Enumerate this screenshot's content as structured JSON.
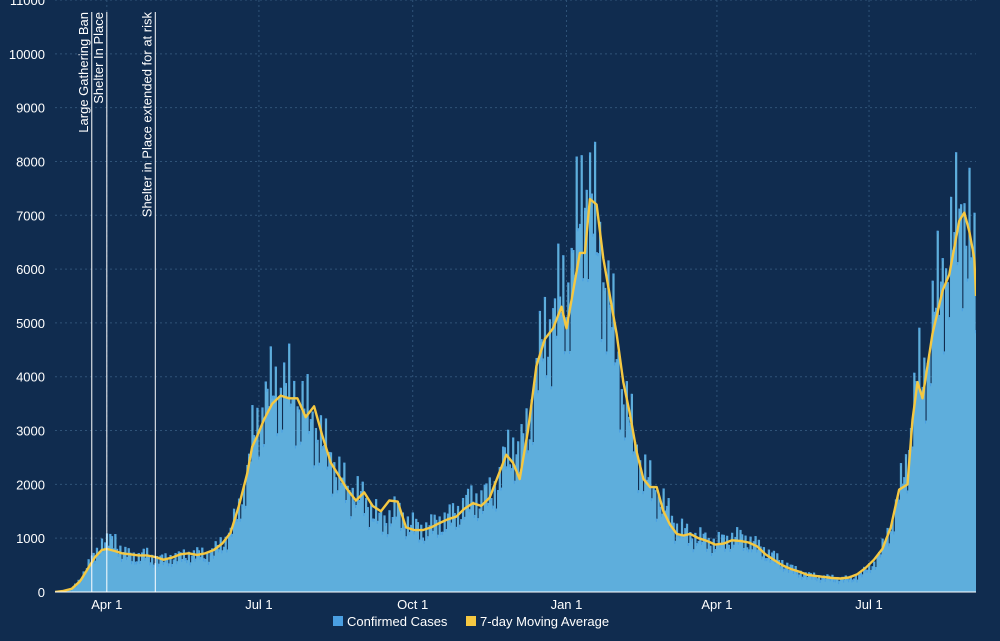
{
  "chart_data": {
    "type": "bar",
    "title": "",
    "xlabel": "",
    "ylabel": "",
    "ylim": [
      0,
      11000
    ],
    "y_ticks": [
      0,
      1000,
      2000,
      3000,
      4000,
      5000,
      6000,
      7000,
      8000,
      9000,
      10000,
      11000
    ],
    "x_ticks": [
      {
        "label": "Apr 1",
        "day": 31
      },
      {
        "label": "Jul 1",
        "day": 122
      },
      {
        "label": "Oct 1",
        "day": 214
      },
      {
        "label": "Jan 1",
        "day": 306
      },
      {
        "label": "Apr 1",
        "day": 396
      },
      {
        "label": "Jul 1",
        "day": 487
      }
    ],
    "x_range_days": [
      0,
      551
    ],
    "grid": true,
    "legend_position": "bottom",
    "series": [
      {
        "name": "Confirmed Cases",
        "color": "#4a9fe2",
        "kind": "bar",
        "points": [
          [
            0,
            0
          ],
          [
            5,
            20
          ],
          [
            10,
            60
          ],
          [
            15,
            250
          ],
          [
            20,
            500
          ],
          [
            24,
            700
          ],
          [
            27,
            900
          ],
          [
            31,
            900
          ],
          [
            36,
            1000
          ],
          [
            40,
            700
          ],
          [
            45,
            700
          ],
          [
            50,
            650
          ],
          [
            55,
            700
          ],
          [
            60,
            600
          ],
          [
            65,
            600
          ],
          [
            70,
            650
          ],
          [
            75,
            650
          ],
          [
            80,
            700
          ],
          [
            85,
            700
          ],
          [
            90,
            700
          ],
          [
            95,
            750
          ],
          [
            100,
            900
          ],
          [
            105,
            1100
          ],
          [
            110,
            1500
          ],
          [
            115,
            2200
          ],
          [
            118,
            2800
          ],
          [
            121,
            3000
          ],
          [
            125,
            3500
          ],
          [
            130,
            3700
          ],
          [
            135,
            3800
          ],
          [
            140,
            3700
          ],
          [
            145,
            3500
          ],
          [
            150,
            3300
          ],
          [
            155,
            3100
          ],
          [
            160,
            2700
          ],
          [
            165,
            2500
          ],
          [
            170,
            2100
          ],
          [
            175,
            1900
          ],
          [
            180,
            1800
          ],
          [
            185,
            1700
          ],
          [
            190,
            1500
          ],
          [
            195,
            1300
          ],
          [
            200,
            1400
          ],
          [
            205,
            1500
          ],
          [
            210,
            1300
          ],
          [
            215,
            1200
          ],
          [
            220,
            1150
          ],
          [
            225,
            1200
          ],
          [
            230,
            1300
          ],
          [
            235,
            1350
          ],
          [
            240,
            1450
          ],
          [
            245,
            1600
          ],
          [
            250,
            1700
          ],
          [
            255,
            1700
          ],
          [
            260,
            1800
          ],
          [
            265,
            2000
          ],
          [
            270,
            2500
          ],
          [
            274,
            2700
          ],
          [
            278,
            2500
          ],
          [
            283,
            3000
          ],
          [
            288,
            4000
          ],
          [
            293,
            4700
          ],
          [
            298,
            5000
          ],
          [
            303,
            5400
          ],
          [
            306,
            5500
          ],
          [
            310,
            6000
          ],
          [
            314,
            7000
          ],
          [
            317,
            7500
          ],
          [
            320,
            7300
          ],
          [
            324,
            6500
          ],
          [
            328,
            5900
          ],
          [
            332,
            5200
          ],
          [
            336,
            4300
          ],
          [
            340,
            3600
          ],
          [
            344,
            3100
          ],
          [
            348,
            2600
          ],
          [
            352,
            2200
          ],
          [
            356,
            2000
          ],
          [
            360,
            1800
          ],
          [
            364,
            1600
          ],
          [
            368,
            1400
          ],
          [
            372,
            1200
          ],
          [
            376,
            1100
          ],
          [
            380,
            1050
          ],
          [
            385,
            1000
          ],
          [
            390,
            950
          ],
          [
            395,
            900
          ],
          [
            400,
            950
          ],
          [
            405,
            1000
          ],
          [
            410,
            1000
          ],
          [
            415,
            950
          ],
          [
            420,
            850
          ],
          [
            425,
            750
          ],
          [
            430,
            650
          ],
          [
            435,
            550
          ],
          [
            440,
            450
          ],
          [
            445,
            380
          ],
          [
            450,
            320
          ],
          [
            455,
            300
          ],
          [
            460,
            280
          ],
          [
            465,
            270
          ],
          [
            470,
            260
          ],
          [
            475,
            250
          ],
          [
            480,
            300
          ],
          [
            485,
            400
          ],
          [
            490,
            550
          ],
          [
            495,
            800
          ],
          [
            500,
            1200
          ],
          [
            505,
            1800
          ],
          [
            510,
            2400
          ],
          [
            513,
            3400
          ],
          [
            516,
            4000
          ],
          [
            519,
            3800
          ],
          [
            522,
            4300
          ],
          [
            525,
            5000
          ],
          [
            528,
            5400
          ],
          [
            531,
            5800
          ],
          [
            535,
            6100
          ],
          [
            538,
            6500
          ],
          [
            541,
            6900
          ],
          [
            544,
            7000
          ],
          [
            547,
            6600
          ],
          [
            550,
            5800
          ],
          [
            551,
            5500
          ]
        ]
      },
      {
        "name": "7-day Moving Average",
        "color": "#f5c842",
        "kind": "line",
        "points": [
          [
            0,
            0
          ],
          [
            5,
            20
          ],
          [
            10,
            60
          ],
          [
            15,
            200
          ],
          [
            20,
            450
          ],
          [
            24,
            650
          ],
          [
            28,
            780
          ],
          [
            31,
            800
          ],
          [
            36,
            760
          ],
          [
            40,
            720
          ],
          [
            45,
            700
          ],
          [
            50,
            680
          ],
          [
            55,
            680
          ],
          [
            60,
            650
          ],
          [
            65,
            600
          ],
          [
            70,
            640
          ],
          [
            75,
            700
          ],
          [
            80,
            720
          ],
          [
            85,
            690
          ],
          [
            90,
            720
          ],
          [
            95,
            780
          ],
          [
            100,
            900
          ],
          [
            105,
            1100
          ],
          [
            110,
            1600
          ],
          [
            115,
            2200
          ],
          [
            118,
            2700
          ],
          [
            121,
            2900
          ],
          [
            125,
            3200
          ],
          [
            130,
            3500
          ],
          [
            135,
            3650
          ],
          [
            140,
            3600
          ],
          [
            145,
            3600
          ],
          [
            150,
            3250
          ],
          [
            155,
            3450
          ],
          [
            160,
            2900
          ],
          [
            165,
            2400
          ],
          [
            170,
            2150
          ],
          [
            175,
            1900
          ],
          [
            180,
            1700
          ],
          [
            185,
            1850
          ],
          [
            190,
            1600
          ],
          [
            195,
            1500
          ],
          [
            200,
            1700
          ],
          [
            205,
            1680
          ],
          [
            210,
            1200
          ],
          [
            215,
            1150
          ],
          [
            220,
            1150
          ],
          [
            225,
            1200
          ],
          [
            230,
            1280
          ],
          [
            235,
            1350
          ],
          [
            240,
            1400
          ],
          [
            245,
            1550
          ],
          [
            250,
            1650
          ],
          [
            255,
            1600
          ],
          [
            260,
            1750
          ],
          [
            265,
            2150
          ],
          [
            270,
            2550
          ],
          [
            274,
            2400
          ],
          [
            278,
            2100
          ],
          [
            283,
            3000
          ],
          [
            288,
            4200
          ],
          [
            293,
            4700
          ],
          [
            298,
            4900
          ],
          [
            303,
            5300
          ],
          [
            306,
            4900
          ],
          [
            310,
            5600
          ],
          [
            314,
            6300
          ],
          [
            317,
            6300
          ],
          [
            320,
            7300
          ],
          [
            324,
            7200
          ],
          [
            328,
            6200
          ],
          [
            332,
            5500
          ],
          [
            336,
            4800
          ],
          [
            340,
            3900
          ],
          [
            344,
            3300
          ],
          [
            348,
            2600
          ],
          [
            352,
            2100
          ],
          [
            356,
            1950
          ],
          [
            360,
            1950
          ],
          [
            364,
            1500
          ],
          [
            368,
            1250
          ],
          [
            372,
            1080
          ],
          [
            376,
            1050
          ],
          [
            380,
            1080
          ],
          [
            385,
            1000
          ],
          [
            390,
            950
          ],
          [
            395,
            880
          ],
          [
            400,
            900
          ],
          [
            405,
            960
          ],
          [
            410,
            950
          ],
          [
            415,
            920
          ],
          [
            420,
            850
          ],
          [
            425,
            700
          ],
          [
            430,
            600
          ],
          [
            435,
            500
          ],
          [
            440,
            430
          ],
          [
            445,
            380
          ],
          [
            450,
            320
          ],
          [
            455,
            300
          ],
          [
            460,
            280
          ],
          [
            465,
            260
          ],
          [
            470,
            250
          ],
          [
            475,
            270
          ],
          [
            480,
            330
          ],
          [
            485,
            450
          ],
          [
            490,
            600
          ],
          [
            495,
            800
          ],
          [
            500,
            1200
          ],
          [
            505,
            1900
          ],
          [
            510,
            2000
          ],
          [
            513,
            3200
          ],
          [
            516,
            3900
          ],
          [
            519,
            3600
          ],
          [
            522,
            4200
          ],
          [
            525,
            4800
          ],
          [
            528,
            5200
          ],
          [
            531,
            5600
          ],
          [
            535,
            5900
          ],
          [
            538,
            6400
          ],
          [
            541,
            6900
          ],
          [
            544,
            7050
          ],
          [
            547,
            6700
          ],
          [
            550,
            6200
          ],
          [
            551,
            5500
          ]
        ]
      }
    ],
    "annotations": [
      {
        "label": "Large Gathering Ban",
        "day": 22
      },
      {
        "label": "Shelter In Place",
        "day": 31
      },
      {
        "label": "Shelter in Place extended for at risk",
        "day": 60
      }
    ],
    "colors": {
      "background": "#102c4f",
      "grid": "#2f5378",
      "cases": "#4a9fe2",
      "cases_fill": "#5eaedc",
      "average": "#f5c842",
      "annotation_line": "#ffffff"
    }
  },
  "legend": {
    "cases_label": "Confirmed Cases",
    "average_label": "7-day Moving Average"
  }
}
